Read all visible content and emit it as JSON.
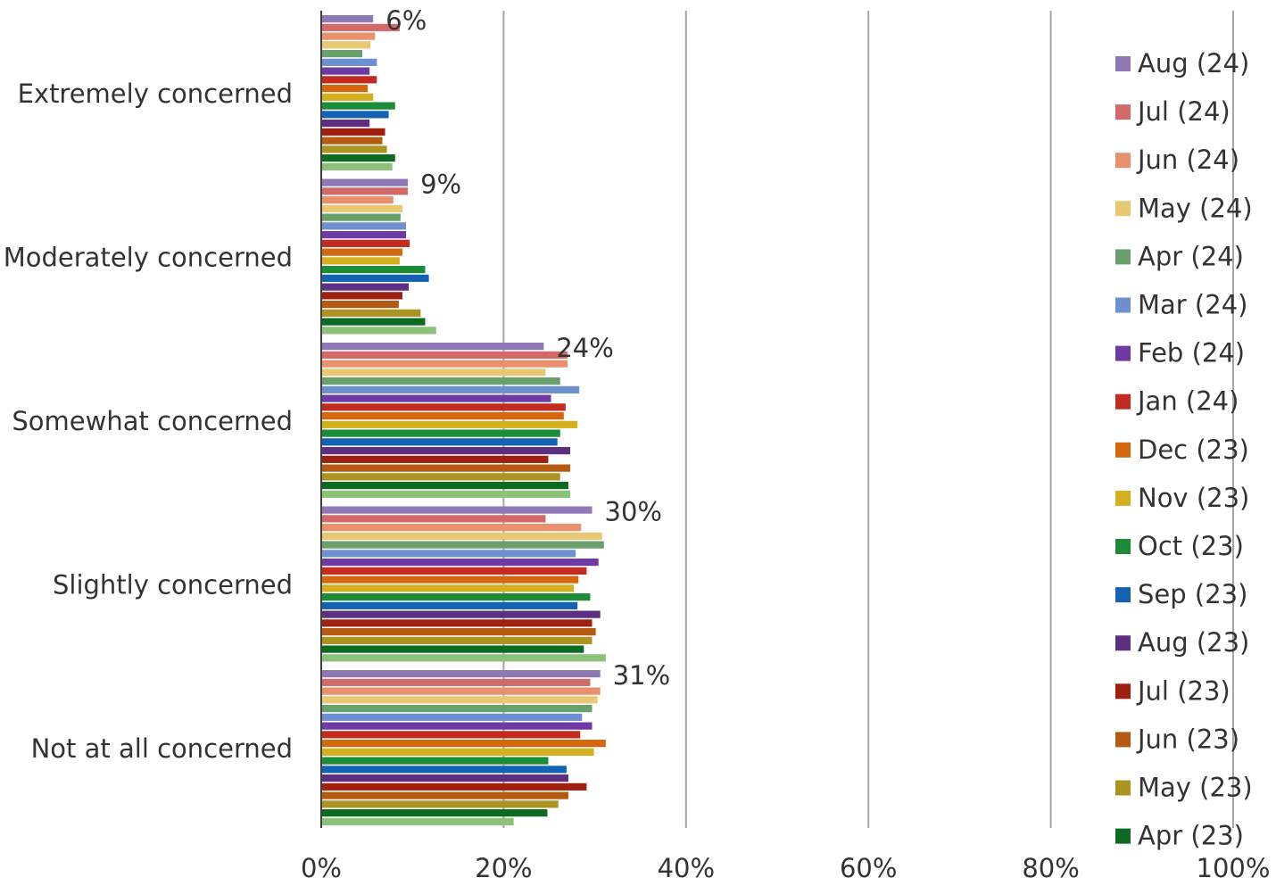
{
  "chart_data": {
    "type": "bar",
    "orientation": "horizontal",
    "title": "",
    "xlabel": "",
    "ylabel": "",
    "xlim": [
      0,
      100
    ],
    "x_ticks": [
      "0%",
      "20%",
      "40%",
      "60%",
      "80%",
      "100%"
    ],
    "grid": "vertical",
    "legend_position": "right",
    "categories": [
      "Extremely concerned",
      "Moderately concerned",
      "Somewhat concerned",
      "Slightly concerned",
      "Not at all concerned"
    ],
    "data_labels": [
      "6%",
      "9%",
      "24%",
      "30%",
      "31%"
    ],
    "series": [
      {
        "name": "Aug (24)",
        "color": "#8f78b6",
        "values": [
          5.7,
          9.5,
          24.4,
          29.7,
          30.6
        ]
      },
      {
        "name": "Jul (24)",
        "color": "#d26a69",
        "values": [
          8.6,
          9.5,
          27.0,
          24.6,
          29.5
        ]
      },
      {
        "name": "Jun (24)",
        "color": "#e9906c",
        "values": [
          5.9,
          7.9,
          27.0,
          28.5,
          30.6
        ]
      },
      {
        "name": "May (24)",
        "color": "#e8c873",
        "values": [
          5.4,
          8.9,
          24.6,
          30.8,
          30.3
        ]
      },
      {
        "name": "Apr (24)",
        "color": "#69a06c",
        "values": [
          4.5,
          8.7,
          26.2,
          31.0,
          29.7
        ]
      },
      {
        "name": "Mar (24)",
        "color": "#6e8fd0",
        "values": [
          6.1,
          9.3,
          28.3,
          27.9,
          28.6
        ]
      },
      {
        "name": "Feb (24)",
        "color": "#6e3aa3",
        "values": [
          5.3,
          9.3,
          25.2,
          30.4,
          29.7
        ]
      },
      {
        "name": "Jan (24)",
        "color": "#c32b1f",
        "values": [
          6.1,
          9.7,
          26.8,
          29.1,
          28.4
        ]
      },
      {
        "name": "Dec (23)",
        "color": "#d5680e",
        "values": [
          5.1,
          8.9,
          26.6,
          28.2,
          31.2
        ]
      },
      {
        "name": "Nov (23)",
        "color": "#d4b01e",
        "values": [
          5.7,
          8.6,
          28.1,
          27.7,
          29.9
        ]
      },
      {
        "name": "Oct (23)",
        "color": "#1d8c36",
        "values": [
          8.1,
          11.4,
          26.2,
          29.5,
          24.9
        ]
      },
      {
        "name": "Sep (23)",
        "color": "#1463b2",
        "values": [
          7.4,
          11.8,
          25.9,
          28.1,
          26.9
        ]
      },
      {
        "name": "Aug (23)",
        "color": "#5c2f80",
        "values": [
          5.3,
          9.6,
          27.3,
          30.6,
          27.1
        ]
      },
      {
        "name": "Jul (23)",
        "color": "#a0200f",
        "values": [
          7.0,
          8.9,
          24.9,
          29.7,
          29.1
        ]
      },
      {
        "name": "Jun (23)",
        "color": "#b55a10",
        "values": [
          6.7,
          8.5,
          27.3,
          30.1,
          27.1
        ]
      },
      {
        "name": "May (23)",
        "color": "#ad9420",
        "values": [
          7.2,
          10.9,
          26.2,
          29.7,
          26.0
        ]
      },
      {
        "name": "Apr (23)",
        "color": "#0c6a23",
        "values": [
          8.1,
          11.4,
          27.1,
          28.8,
          24.8
        ]
      },
      {
        "name": "",
        "color": "#8cc17a",
        "values": [
          7.8,
          12.6,
          27.3,
          31.2,
          21.1
        ]
      }
    ]
  }
}
